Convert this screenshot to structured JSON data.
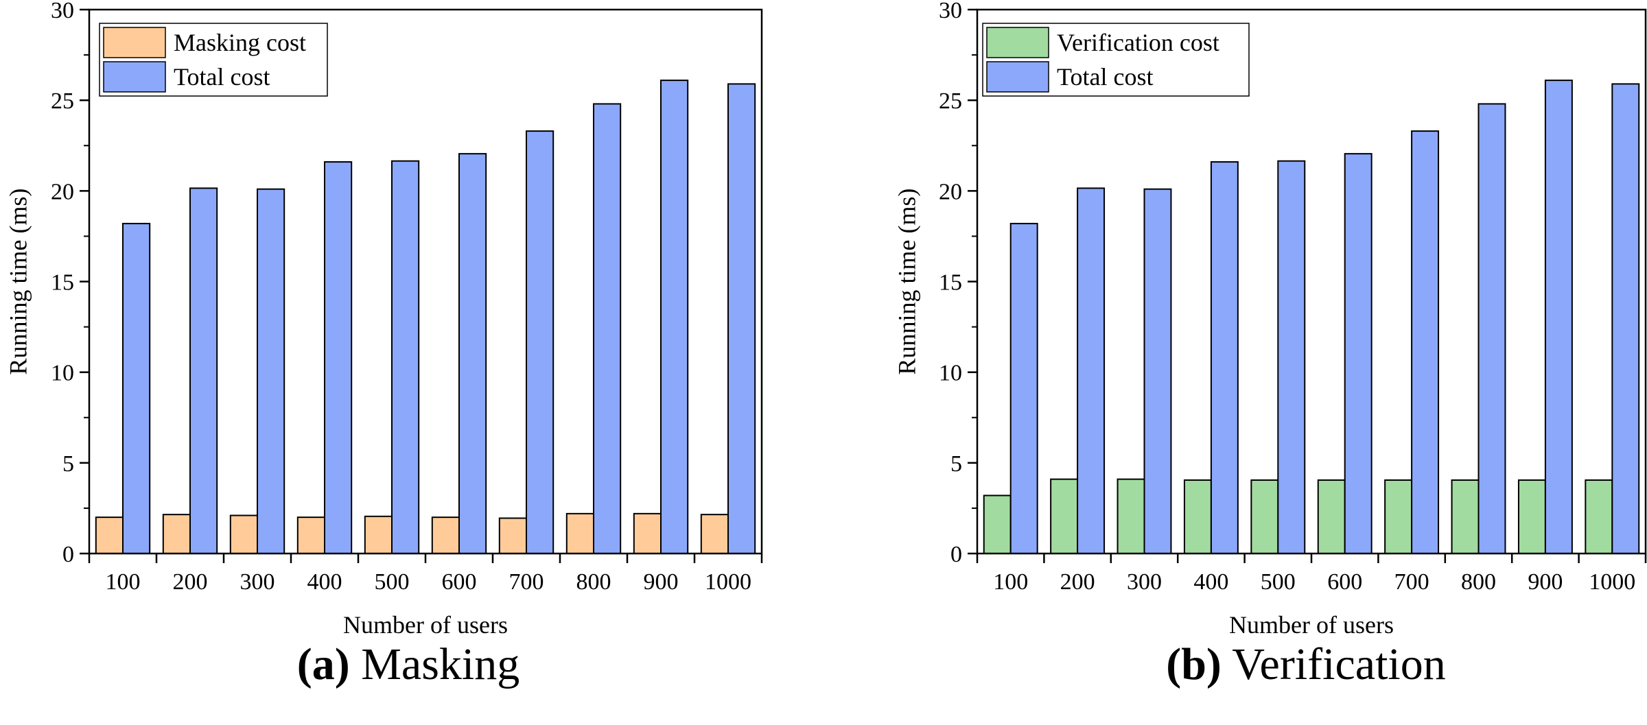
{
  "chart_data": [
    {
      "type": "bar",
      "caption_tag": "(a)",
      "caption_title": "Masking",
      "xlabel": "Number of users",
      "ylabel": "Running time (ms)",
      "ylim": [
        0,
        30
      ],
      "yticks": [
        0,
        5,
        10,
        15,
        20,
        25,
        30
      ],
      "categories": [
        "100",
        "200",
        "300",
        "400",
        "500",
        "600",
        "700",
        "800",
        "900",
        "1000"
      ],
      "legend_position": "top-left",
      "series": [
        {
          "name": "Masking cost",
          "color": "#FFCC99",
          "values": [
            2.0,
            2.15,
            2.1,
            2.0,
            2.05,
            2.0,
            1.95,
            2.2,
            2.2,
            2.15
          ]
        },
        {
          "name": "Total cost",
          "color": "#8CA8FA",
          "values": [
            18.2,
            20.15,
            20.1,
            21.6,
            21.65,
            22.05,
            23.3,
            24.8,
            26.1,
            25.9
          ]
        }
      ]
    },
    {
      "type": "bar",
      "caption_tag": "(b)",
      "caption_title": "Verification",
      "xlabel": "Number of users",
      "ylabel": "Running time (ms)",
      "ylim": [
        0,
        30
      ],
      "yticks": [
        0,
        5,
        10,
        15,
        20,
        25,
        30
      ],
      "categories": [
        "100",
        "200",
        "300",
        "400",
        "500",
        "600",
        "700",
        "800",
        "900",
        "1000"
      ],
      "legend_position": "top-left",
      "series": [
        {
          "name": "Verification cost",
          "color": "#A2DBA0",
          "values": [
            3.2,
            4.1,
            4.1,
            4.05,
            4.05,
            4.05,
            4.05,
            4.05,
            4.05,
            4.05
          ]
        },
        {
          "name": "Total cost",
          "color": "#8CA8FA",
          "values": [
            18.2,
            20.15,
            20.1,
            21.6,
            21.65,
            22.05,
            23.3,
            24.8,
            26.1,
            25.9
          ]
        }
      ]
    }
  ]
}
